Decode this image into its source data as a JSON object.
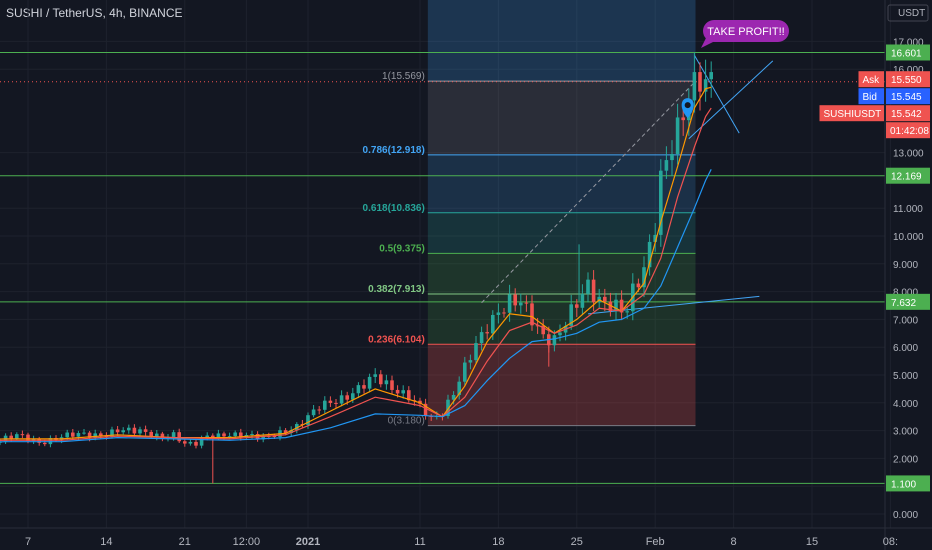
{
  "header": {
    "symbol": "SUSHI / TetherUS, 4h, BINANCE",
    "currency": "USDT"
  },
  "chart_data": {
    "type": "candlestick",
    "ylim": [
      -0.3,
      17.8
    ],
    "y_ticks": [
      {
        "value": 17.0,
        "label": "17.000"
      },
      {
        "value": 16.0,
        "label": "16.000"
      },
      {
        "value": 13.0,
        "label": "13.000"
      },
      {
        "value": 11.0,
        "label": "11.000"
      },
      {
        "value": 10.0,
        "label": "10.000"
      },
      {
        "value": 9.0,
        "label": "9.000"
      },
      {
        "value": 8.0,
        "label": "8.000"
      },
      {
        "value": 7.0,
        "label": "7.000"
      },
      {
        "value": 6.0,
        "label": "6.000"
      },
      {
        "value": 5.0,
        "label": "5.000"
      },
      {
        "value": 4.0,
        "label": "4.000"
      },
      {
        "value": 3.0,
        "label": "3.000"
      },
      {
        "value": 2.0,
        "label": "2.000"
      },
      {
        "value": 1.0,
        "label": "1.000"
      },
      {
        "value": 0.0,
        "label": "0.000"
      }
    ],
    "x_ticks": [
      {
        "day": 7,
        "label": "7",
        "bold": false
      },
      {
        "day": 14,
        "label": "14",
        "bold": false
      },
      {
        "day": 21,
        "label": "21",
        "bold": false
      },
      {
        "day": 26.5,
        "label": "12:00",
        "bold": false
      },
      {
        "day": 32,
        "label": "2021",
        "bold": true
      },
      {
        "day": 42,
        "label": "11",
        "bold": false
      },
      {
        "day": 49,
        "label": "18",
        "bold": false
      },
      {
        "day": 56,
        "label": "25",
        "bold": false
      },
      {
        "day": 63,
        "label": "Feb",
        "bold": false
      },
      {
        "day": 70,
        "label": "8",
        "bold": false
      },
      {
        "day": 77,
        "label": "15",
        "bold": false
      },
      {
        "day": 84,
        "label": "08:",
        "bold": false
      }
    ],
    "horizontal_levels": [
      {
        "value": 16.601,
        "label": "16.601"
      },
      {
        "value": 12.169,
        "label": "12.169"
      },
      {
        "value": 7.632,
        "label": "7.632"
      },
      {
        "value": 1.1,
        "label": "1.100"
      }
    ],
    "fib_retracement": {
      "start_day": 42.7,
      "end_day": 66.6,
      "levels": [
        {
          "ratio": "1",
          "value": 15.569,
          "label": "1(15.569)",
          "color": "#9598a1"
        },
        {
          "ratio": "0.786",
          "value": 12.918,
          "label": "0.786(12.918)",
          "color": "#42a5f5"
        },
        {
          "ratio": "0.618",
          "value": 10.836,
          "label": "0.618(10.836)",
          "color": "#26a69a"
        },
        {
          "ratio": "0.5",
          "value": 9.375,
          "label": "0.5(9.375)",
          "color": "#4caf50"
        },
        {
          "ratio": "0.382",
          "value": 7.913,
          "label": "0.382(7.913)",
          "color": "#81c784"
        },
        {
          "ratio": "0.236",
          "value": 6.104,
          "label": "0.236(6.104)",
          "color": "#ef5350"
        },
        {
          "ratio": "0",
          "value": 3.18,
          "label": "0(3.180)",
          "color": "#787b86"
        }
      ]
    },
    "price_tags": [
      {
        "name": "Ask",
        "value": 15.55,
        "label": "15.550",
        "color": "#ef5350"
      },
      {
        "name": "Bid",
        "value": 15.545,
        "label": "15.545",
        "color": "#2962ff"
      },
      {
        "name": "SUSHIUSDT",
        "value": 15.542,
        "label": "15.542",
        "color": "#ef5350"
      }
    ],
    "countdown": "01:42:08",
    "annotation": "TAKE PROFIT!!",
    "close_path": [
      [
        0,
        2.7
      ],
      [
        2,
        2.75
      ],
      [
        4,
        2.65
      ],
      [
        6,
        2.8
      ],
      [
        8,
        2.6
      ],
      [
        10,
        2.75
      ],
      [
        12,
        2.9
      ],
      [
        14,
        2.85
      ],
      [
        15,
        2.95
      ],
      [
        17,
        3.05
      ],
      [
        18,
        2.9
      ],
      [
        19,
        2.7
      ],
      [
        20,
        2.8
      ],
      [
        21,
        2.55
      ],
      [
        22,
        2.6
      ],
      [
        23,
        2.8
      ],
      [
        24,
        2.75
      ],
      [
        26,
        2.9
      ],
      [
        27,
        2.85
      ],
      [
        28,
        2.7
      ],
      [
        29,
        2.8
      ],
      [
        30,
        3.0
      ],
      [
        31,
        3.2
      ],
      [
        32,
        3.5
      ],
      [
        33,
        3.8
      ],
      [
        34,
        4.0
      ],
      [
        35,
        4.2
      ],
      [
        36,
        4.4
      ],
      [
        37,
        4.6
      ],
      [
        38,
        4.9
      ],
      [
        39,
        4.7
      ],
      [
        40,
        4.5
      ],
      [
        41,
        4.2
      ],
      [
        42,
        3.8
      ],
      [
        43,
        3.4
      ],
      [
        44,
        3.7
      ],
      [
        45,
        4.4
      ],
      [
        46,
        5.2
      ],
      [
        47,
        6.0
      ],
      [
        48,
        6.8
      ],
      [
        49,
        7.4
      ],
      [
        50,
        7.6
      ],
      [
        51,
        7.5
      ],
      [
        52,
        7.0
      ],
      [
        53,
        6.5
      ],
      [
        54,
        6.3
      ],
      [
        55,
        6.8
      ],
      [
        56,
        7.5
      ],
      [
        57,
        8.3
      ],
      [
        58,
        7.8
      ],
      [
        59,
        7.5
      ],
      [
        60,
        7.2
      ],
      [
        60.5,
        7.3
      ],
      [
        61,
        8.0
      ],
      [
        62,
        9.0
      ],
      [
        63,
        10.5
      ],
      [
        63.5,
        12.0
      ],
      [
        64,
        12.5
      ],
      [
        65,
        13.6
      ],
      [
        66,
        15.2
      ],
      [
        66.5,
        15.7
      ],
      [
        67,
        16.0
      ],
      [
        67.5,
        15.6
      ],
      [
        68,
        15.55
      ]
    ],
    "ma_fast_path": [
      [
        0,
        2.65
      ],
      [
        5,
        2.7
      ],
      [
        10,
        2.7
      ],
      [
        15,
        2.85
      ],
      [
        20,
        2.75
      ],
      [
        25,
        2.75
      ],
      [
        30,
        2.9
      ],
      [
        34,
        3.7
      ],
      [
        38,
        4.5
      ],
      [
        42,
        4.0
      ],
      [
        44,
        3.5
      ],
      [
        46,
        4.6
      ],
      [
        48,
        6.2
      ],
      [
        50,
        7.2
      ],
      [
        52,
        7.1
      ],
      [
        54,
        6.5
      ],
      [
        56,
        7.0
      ],
      [
        58,
        7.7
      ],
      [
        60,
        7.3
      ],
      [
        62,
        8.3
      ],
      [
        63.5,
        10.5
      ],
      [
        65,
        12.5
      ],
      [
        66.5,
        14.6
      ],
      [
        67.5,
        15.3
      ],
      [
        68,
        15.35
      ]
    ],
    "ma_mid_path": [
      [
        0,
        2.6
      ],
      [
        5,
        2.65
      ],
      [
        10,
        2.65
      ],
      [
        15,
        2.8
      ],
      [
        20,
        2.75
      ],
      [
        25,
        2.7
      ],
      [
        30,
        2.85
      ],
      [
        34,
        3.5
      ],
      [
        38,
        4.2
      ],
      [
        42,
        3.9
      ],
      [
        44,
        3.5
      ],
      [
        46,
        4.2
      ],
      [
        48,
        5.5
      ],
      [
        50,
        6.6
      ],
      [
        52,
        6.9
      ],
      [
        54,
        6.5
      ],
      [
        56,
        6.8
      ],
      [
        58,
        7.4
      ],
      [
        60,
        7.3
      ],
      [
        62,
        7.9
      ],
      [
        63.5,
        9.2
      ],
      [
        65,
        11.4
      ],
      [
        66.5,
        13.2
      ],
      [
        67.5,
        14.3
      ],
      [
        68,
        14.6
      ]
    ],
    "ma_slow_path": [
      [
        0,
        2.55
      ],
      [
        5,
        2.6
      ],
      [
        10,
        2.6
      ],
      [
        15,
        2.75
      ],
      [
        20,
        2.7
      ],
      [
        25,
        2.65
      ],
      [
        30,
        2.75
      ],
      [
        34,
        3.1
      ],
      [
        38,
        3.6
      ],
      [
        42,
        3.55
      ],
      [
        44,
        3.5
      ],
      [
        46,
        3.9
      ],
      [
        48,
        4.8
      ],
      [
        50,
        5.6
      ],
      [
        52,
        6.2
      ],
      [
        54,
        6.3
      ],
      [
        56,
        6.5
      ],
      [
        58,
        6.9
      ],
      [
        60,
        7.0
      ],
      [
        62,
        7.4
      ],
      [
        63.5,
        8.2
      ],
      [
        65,
        9.6
      ],
      [
        66.5,
        11.0
      ],
      [
        67.5,
        12.0
      ],
      [
        68,
        12.4
      ]
    ],
    "spikes": [
      {
        "day": 23.5,
        "low": 1.1
      },
      {
        "day": 53.5,
        "low": 5.3
      },
      {
        "day": 56.2,
        "high": 9.7
      }
    ],
    "trendlines": [
      {
        "name": "lower-support-line",
        "points": [
          [
            57.0,
            7.2
          ],
          [
            72.3,
            7.83
          ]
        ],
        "color": "#42a5f5"
      },
      {
        "name": "triangle-upper",
        "points": [
          [
            66.5,
            16.5
          ],
          [
            70.5,
            13.7
          ]
        ],
        "color": "#42a5f5"
      },
      {
        "name": "triangle-lower",
        "points": [
          [
            66.0,
            13.5
          ],
          [
            73.5,
            16.3
          ]
        ],
        "color": "#42a5f5"
      },
      {
        "name": "trend-diagonal",
        "points": [
          [
            47.5,
            7.6
          ],
          [
            66.6,
            15.569
          ]
        ],
        "color": "#9598a1"
      }
    ]
  }
}
